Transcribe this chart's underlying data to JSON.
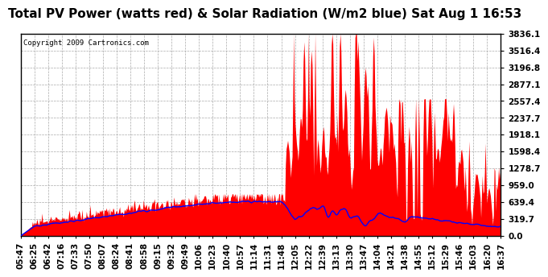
{
  "title": "Total PV Power (watts red) & Solar Radiation (W/m2 blue) Sat Aug 1 16:53",
  "copyright": "Copyright 2009 Cartronics.com",
  "background_color": "#ffffff",
  "plot_bg_color": "#ffffff",
  "grid_color": "#aaaaaa",
  "yticks": [
    0.0,
    319.7,
    639.4,
    959.0,
    1278.7,
    1598.4,
    1918.1,
    2237.7,
    2557.4,
    2877.1,
    3196.8,
    3516.4,
    3836.1
  ],
  "ymax": 3836.1,
  "xtick_labels": [
    "05:47",
    "06:25",
    "06:42",
    "07:16",
    "07:33",
    "07:50",
    "08:07",
    "08:24",
    "08:41",
    "08:58",
    "09:15",
    "09:32",
    "09:49",
    "10:06",
    "10:23",
    "10:40",
    "10:57",
    "11:14",
    "11:31",
    "11:48",
    "12:05",
    "12:22",
    "12:39",
    "13:13",
    "13:30",
    "13:47",
    "14:04",
    "14:21",
    "14:38",
    "14:55",
    "15:12",
    "15:29",
    "15:46",
    "16:03",
    "16:20",
    "16:37"
  ],
  "red_fill_color": "#ff0000",
  "blue_line_color": "#0000ff",
  "title_fontsize": 11,
  "tick_fontsize": 7.5,
  "copyright_fontsize": 6.5
}
